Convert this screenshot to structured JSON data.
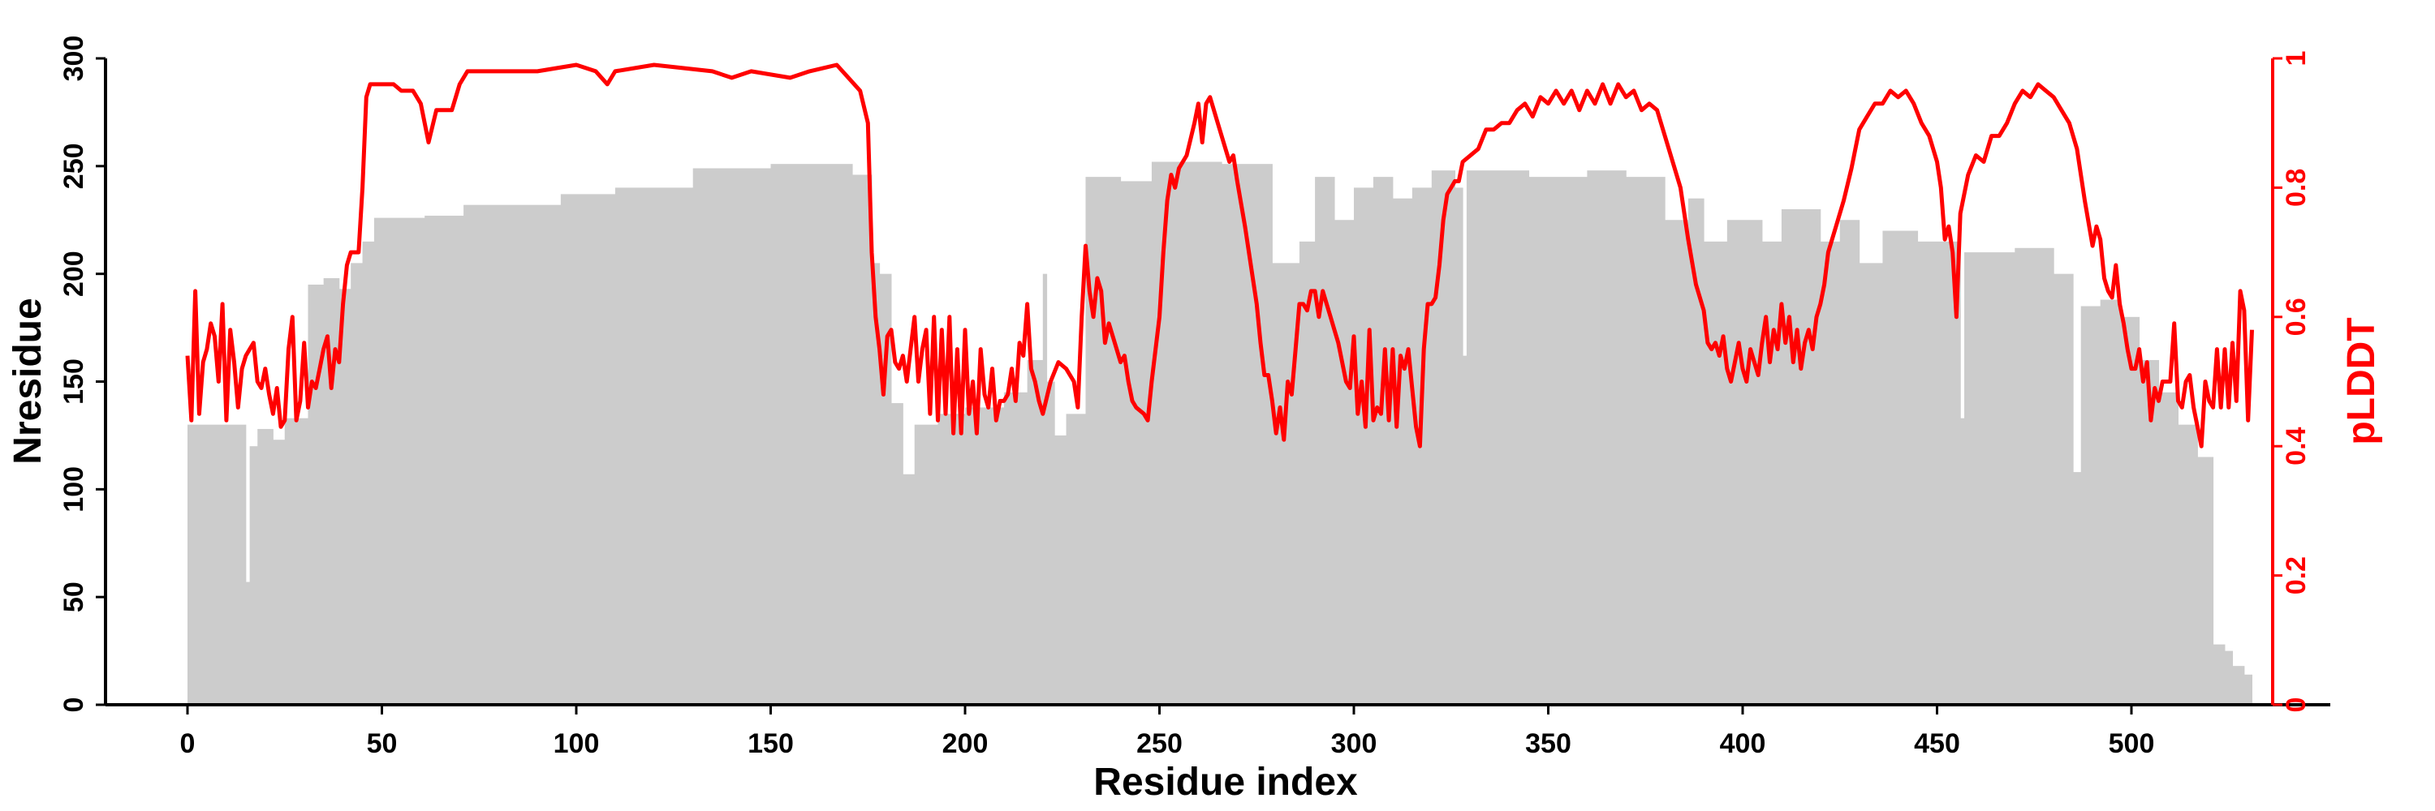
{
  "chart_data": {
    "type": "bar+line",
    "title": "",
    "xlabel": "Residue index",
    "ylabel": "Nresidue",
    "y2label": "pLDDT",
    "xlim": [
      -20,
      550
    ],
    "ylim": [
      0,
      300
    ],
    "y2lim": [
      0,
      1
    ],
    "xticks": [
      0,
      50,
      100,
      150,
      200,
      250,
      300,
      350,
      400,
      450,
      500
    ],
    "yticks": [
      0,
      50,
      100,
      150,
      200,
      250,
      300
    ],
    "y2ticks": [
      0,
      0.2,
      0.4,
      0.6,
      0.8,
      1
    ],
    "grid": false,
    "colors": {
      "bars": "#cccccc",
      "line": "#ff0000",
      "axis": "#000000",
      "axis2": "#ff0000"
    },
    "nresidue_steps": [
      [
        0,
        130
      ],
      [
        15,
        57
      ],
      [
        16,
        120
      ],
      [
        18,
        128
      ],
      [
        22,
        123
      ],
      [
        25,
        133
      ],
      [
        31,
        195
      ],
      [
        35,
        198
      ],
      [
        39,
        193
      ],
      [
        42,
        205
      ],
      [
        45,
        215
      ],
      [
        48,
        226
      ],
      [
        61,
        227
      ],
      [
        71,
        232
      ],
      [
        96,
        237
      ],
      [
        110,
        240
      ],
      [
        130,
        249
      ],
      [
        150,
        251
      ],
      [
        171,
        246
      ],
      [
        176,
        205
      ],
      [
        178,
        200
      ],
      [
        181,
        140
      ],
      [
        184,
        107
      ],
      [
        187,
        130
      ],
      [
        193,
        135
      ],
      [
        200,
        138
      ],
      [
        210,
        145
      ],
      [
        216,
        160
      ],
      [
        220,
        200
      ],
      [
        221,
        150
      ],
      [
        223,
        125
      ],
      [
        226,
        135
      ],
      [
        231,
        245
      ],
      [
        240,
        243
      ],
      [
        248,
        252
      ],
      [
        266,
        251
      ],
      [
        279,
        205
      ],
      [
        286,
        215
      ],
      [
        290,
        245
      ],
      [
        295,
        225
      ],
      [
        300,
        240
      ],
      [
        305,
        245
      ],
      [
        310,
        235
      ],
      [
        315,
        240
      ],
      [
        320,
        248
      ],
      [
        326,
        240
      ],
      [
        328,
        162
      ],
      [
        329,
        248
      ],
      [
        345,
        245
      ],
      [
        360,
        248
      ],
      [
        370,
        245
      ],
      [
        380,
        225
      ],
      [
        386,
        235
      ],
      [
        390,
        215
      ],
      [
        396,
        225
      ],
      [
        405,
        215
      ],
      [
        410,
        230
      ],
      [
        420,
        215
      ],
      [
        425,
        225
      ],
      [
        430,
        205
      ],
      [
        436,
        220
      ],
      [
        445,
        215
      ],
      [
        456,
        133
      ],
      [
        457,
        210
      ],
      [
        470,
        212
      ],
      [
        480,
        200
      ],
      [
        485,
        108
      ],
      [
        487,
        185
      ],
      [
        492,
        188
      ],
      [
        497,
        180
      ],
      [
        502,
        160
      ],
      [
        507,
        145
      ],
      [
        512,
        130
      ],
      [
        517,
        115
      ],
      [
        521,
        28
      ],
      [
        524,
        25
      ],
      [
        526,
        18
      ],
      [
        529,
        14
      ],
      [
        531,
        0
      ]
    ],
    "plddt_points": [
      [
        0,
        0.54
      ],
      [
        1,
        0.44
      ],
      [
        2,
        0.64
      ],
      [
        3,
        0.45
      ],
      [
        4,
        0.53
      ],
      [
        5,
        0.55
      ],
      [
        6,
        0.59
      ],
      [
        7,
        0.57
      ],
      [
        8,
        0.5
      ],
      [
        9,
        0.62
      ],
      [
        10,
        0.44
      ],
      [
        11,
        0.58
      ],
      [
        12,
        0.53
      ],
      [
        13,
        0.46
      ],
      [
        14,
        0.52
      ],
      [
        15,
        0.54
      ],
      [
        16,
        0.55
      ],
      [
        17,
        0.56
      ],
      [
        18,
        0.5
      ],
      [
        19,
        0.49
      ],
      [
        20,
        0.52
      ],
      [
        21,
        0.48
      ],
      [
        22,
        0.45
      ],
      [
        23,
        0.49
      ],
      [
        24,
        0.43
      ],
      [
        25,
        0.44
      ],
      [
        26,
        0.55
      ],
      [
        27,
        0.6
      ],
      [
        28,
        0.44
      ],
      [
        29,
        0.47
      ],
      [
        30,
        0.56
      ],
      [
        31,
        0.46
      ],
      [
        32,
        0.5
      ],
      [
        33,
        0.49
      ],
      [
        34,
        0.52
      ],
      [
        35,
        0.55
      ],
      [
        36,
        0.57
      ],
      [
        37,
        0.49
      ],
      [
        38,
        0.55
      ],
      [
        39,
        0.53
      ],
      [
        40,
        0.62
      ],
      [
        41,
        0.68
      ],
      [
        42,
        0.7
      ],
      [
        43,
        0.7
      ],
      [
        44,
        0.7
      ],
      [
        45,
        0.8
      ],
      [
        46,
        0.94
      ],
      [
        47,
        0.96
      ],
      [
        50,
        0.96
      ],
      [
        53,
        0.96
      ],
      [
        55,
        0.95
      ],
      [
        58,
        0.95
      ],
      [
        60,
        0.93
      ],
      [
        62,
        0.87
      ],
      [
        64,
        0.92
      ],
      [
        66,
        0.92
      ],
      [
        68,
        0.92
      ],
      [
        70,
        0.96
      ],
      [
        72,
        0.98
      ],
      [
        80,
        0.98
      ],
      [
        90,
        0.98
      ],
      [
        100,
        0.99
      ],
      [
        105,
        0.98
      ],
      [
        108,
        0.96
      ],
      [
        110,
        0.98
      ],
      [
        120,
        0.99
      ],
      [
        135,
        0.98
      ],
      [
        140,
        0.97
      ],
      [
        145,
        0.98
      ],
      [
        155,
        0.97
      ],
      [
        160,
        0.98
      ],
      [
        167,
        0.99
      ],
      [
        170,
        0.97
      ],
      [
        173,
        0.95
      ],
      [
        175,
        0.9
      ],
      [
        176,
        0.7
      ],
      [
        177,
        0.6
      ],
      [
        178,
        0.55
      ],
      [
        179,
        0.48
      ],
      [
        180,
        0.57
      ],
      [
        181,
        0.58
      ],
      [
        182,
        0.53
      ],
      [
        183,
        0.52
      ],
      [
        184,
        0.54
      ],
      [
        185,
        0.5
      ],
      [
        186,
        0.55
      ],
      [
        187,
        0.6
      ],
      [
        188,
        0.5
      ],
      [
        189,
        0.55
      ],
      [
        190,
        0.58
      ],
      [
        191,
        0.45
      ],
      [
        192,
        0.6
      ],
      [
        193,
        0.44
      ],
      [
        194,
        0.58
      ],
      [
        195,
        0.45
      ],
      [
        196,
        0.6
      ],
      [
        197,
        0.42
      ],
      [
        198,
        0.55
      ],
      [
        199,
        0.42
      ],
      [
        200,
        0.58
      ],
      [
        201,
        0.45
      ],
      [
        202,
        0.5
      ],
      [
        203,
        0.42
      ],
      [
        204,
        0.55
      ],
      [
        205,
        0.48
      ],
      [
        206,
        0.46
      ],
      [
        207,
        0.52
      ],
      [
        208,
        0.44
      ],
      [
        209,
        0.47
      ],
      [
        210,
        0.47
      ],
      [
        211,
        0.48
      ],
      [
        212,
        0.52
      ],
      [
        213,
        0.47
      ],
      [
        214,
        0.56
      ],
      [
        215,
        0.54
      ],
      [
        216,
        0.62
      ],
      [
        217,
        0.52
      ],
      [
        218,
        0.5
      ],
      [
        219,
        0.47
      ],
      [
        220,
        0.45
      ],
      [
        222,
        0.5
      ],
      [
        224,
        0.53
      ],
      [
        226,
        0.52
      ],
      [
        228,
        0.5
      ],
      [
        229,
        0.46
      ],
      [
        230,
        0.6
      ],
      [
        231,
        0.71
      ],
      [
        232,
        0.64
      ],
      [
        233,
        0.6
      ],
      [
        234,
        0.66
      ],
      [
        235,
        0.64
      ],
      [
        236,
        0.56
      ],
      [
        237,
        0.59
      ],
      [
        238,
        0.57
      ],
      [
        239,
        0.55
      ],
      [
        240,
        0.53
      ],
      [
        241,
        0.54
      ],
      [
        242,
        0.5
      ],
      [
        243,
        0.47
      ],
      [
        244,
        0.46
      ],
      [
        246,
        0.45
      ],
      [
        247,
        0.44
      ],
      [
        248,
        0.5
      ],
      [
        250,
        0.6
      ],
      [
        251,
        0.7
      ],
      [
        252,
        0.78
      ],
      [
        253,
        0.82
      ],
      [
        254,
        0.8
      ],
      [
        255,
        0.83
      ],
      [
        257,
        0.85
      ],
      [
        259,
        0.9
      ],
      [
        260,
        0.93
      ],
      [
        261,
        0.87
      ],
      [
        262,
        0.93
      ],
      [
        263,
        0.94
      ],
      [
        265,
        0.9
      ],
      [
        267,
        0.86
      ],
      [
        268,
        0.84
      ],
      [
        269,
        0.85
      ],
      [
        270,
        0.81
      ],
      [
        272,
        0.74
      ],
      [
        274,
        0.66
      ],
      [
        275,
        0.62
      ],
      [
        276,
        0.56
      ],
      [
        277,
        0.51
      ],
      [
        278,
        0.51
      ],
      [
        279,
        0.47
      ],
      [
        280,
        0.42
      ],
      [
        281,
        0.46
      ],
      [
        282,
        0.41
      ],
      [
        283,
        0.5
      ],
      [
        284,
        0.48
      ],
      [
        285,
        0.55
      ],
      [
        286,
        0.62
      ],
      [
        287,
        0.62
      ],
      [
        288,
        0.61
      ],
      [
        289,
        0.64
      ],
      [
        290,
        0.64
      ],
      [
        291,
        0.6
      ],
      [
        292,
        0.64
      ],
      [
        293,
        0.62
      ],
      [
        294,
        0.6
      ],
      [
        295,
        0.58
      ],
      [
        296,
        0.56
      ],
      [
        297,
        0.53
      ],
      [
        298,
        0.5
      ],
      [
        299,
        0.49
      ],
      [
        300,
        0.57
      ],
      [
        301,
        0.45
      ],
      [
        302,
        0.5
      ],
      [
        303,
        0.43
      ],
      [
        304,
        0.58
      ],
      [
        305,
        0.44
      ],
      [
        306,
        0.46
      ],
      [
        307,
        0.45
      ],
      [
        308,
        0.55
      ],
      [
        309,
        0.44
      ],
      [
        310,
        0.55
      ],
      [
        311,
        0.43
      ],
      [
        312,
        0.54
      ],
      [
        313,
        0.52
      ],
      [
        314,
        0.55
      ],
      [
        315,
        0.49
      ],
      [
        316,
        0.43
      ],
      [
        317,
        0.4
      ],
      [
        318,
        0.55
      ],
      [
        319,
        0.62
      ],
      [
        320,
        0.62
      ],
      [
        321,
        0.63
      ],
      [
        322,
        0.68
      ],
      [
        323,
        0.75
      ],
      [
        324,
        0.79
      ],
      [
        325,
        0.8
      ],
      [
        326,
        0.81
      ],
      [
        327,
        0.81
      ],
      [
        328,
        0.84
      ],
      [
        330,
        0.85
      ],
      [
        332,
        0.86
      ],
      [
        334,
        0.89
      ],
      [
        336,
        0.89
      ],
      [
        338,
        0.9
      ],
      [
        340,
        0.9
      ],
      [
        342,
        0.92
      ],
      [
        344,
        0.93
      ],
      [
        346,
        0.91
      ],
      [
        348,
        0.94
      ],
      [
        350,
        0.93
      ],
      [
        352,
        0.95
      ],
      [
        354,
        0.93
      ],
      [
        356,
        0.95
      ],
      [
        358,
        0.92
      ],
      [
        360,
        0.95
      ],
      [
        362,
        0.93
      ],
      [
        364,
        0.96
      ],
      [
        366,
        0.93
      ],
      [
        368,
        0.96
      ],
      [
        370,
        0.94
      ],
      [
        372,
        0.95
      ],
      [
        374,
        0.92
      ],
      [
        376,
        0.93
      ],
      [
        378,
        0.92
      ],
      [
        380,
        0.88
      ],
      [
        382,
        0.84
      ],
      [
        384,
        0.8
      ],
      [
        386,
        0.72
      ],
      [
        388,
        0.65
      ],
      [
        390,
        0.61
      ],
      [
        391,
        0.56
      ],
      [
        392,
        0.55
      ],
      [
        393,
        0.56
      ],
      [
        394,
        0.54
      ],
      [
        395,
        0.57
      ],
      [
        396,
        0.52
      ],
      [
        397,
        0.5
      ],
      [
        398,
        0.53
      ],
      [
        399,
        0.56
      ],
      [
        400,
        0.52
      ],
      [
        401,
        0.5
      ],
      [
        402,
        0.55
      ],
      [
        403,
        0.53
      ],
      [
        404,
        0.51
      ],
      [
        405,
        0.56
      ],
      [
        406,
        0.6
      ],
      [
        407,
        0.53
      ],
      [
        408,
        0.58
      ],
      [
        409,
        0.55
      ],
      [
        410,
        0.62
      ],
      [
        411,
        0.56
      ],
      [
        412,
        0.6
      ],
      [
        413,
        0.53
      ],
      [
        414,
        0.58
      ],
      [
        415,
        0.52
      ],
      [
        416,
        0.56
      ],
      [
        417,
        0.58
      ],
      [
        418,
        0.55
      ],
      [
        419,
        0.6
      ],
      [
        420,
        0.62
      ],
      [
        421,
        0.65
      ],
      [
        422,
        0.7
      ],
      [
        424,
        0.74
      ],
      [
        426,
        0.78
      ],
      [
        428,
        0.83
      ],
      [
        430,
        0.89
      ],
      [
        432,
        0.91
      ],
      [
        434,
        0.93
      ],
      [
        436,
        0.93
      ],
      [
        438,
        0.95
      ],
      [
        440,
        0.94
      ],
      [
        442,
        0.95
      ],
      [
        444,
        0.93
      ],
      [
        446,
        0.9
      ],
      [
        448,
        0.88
      ],
      [
        450,
        0.84
      ],
      [
        451,
        0.8
      ],
      [
        452,
        0.72
      ],
      [
        453,
        0.74
      ],
      [
        454,
        0.7
      ],
      [
        455,
        0.6
      ],
      [
        456,
        0.76
      ],
      [
        458,
        0.82
      ],
      [
        460,
        0.85
      ],
      [
        462,
        0.84
      ],
      [
        464,
        0.88
      ],
      [
        466,
        0.88
      ],
      [
        468,
        0.9
      ],
      [
        470,
        0.93
      ],
      [
        472,
        0.95
      ],
      [
        474,
        0.94
      ],
      [
        476,
        0.96
      ],
      [
        478,
        0.95
      ],
      [
        480,
        0.94
      ],
      [
        482,
        0.92
      ],
      [
        484,
        0.9
      ],
      [
        486,
        0.86
      ],
      [
        488,
        0.78
      ],
      [
        490,
        0.71
      ],
      [
        491,
        0.74
      ],
      [
        492,
        0.72
      ],
      [
        493,
        0.66
      ],
      [
        494,
        0.64
      ],
      [
        495,
        0.63
      ],
      [
        496,
        0.68
      ],
      [
        497,
        0.62
      ],
      [
        498,
        0.59
      ],
      [
        499,
        0.55
      ],
      [
        500,
        0.52
      ],
      [
        501,
        0.52
      ],
      [
        502,
        0.55
      ],
      [
        503,
        0.5
      ],
      [
        504,
        0.53
      ],
      [
        505,
        0.44
      ],
      [
        506,
        0.49
      ],
      [
        507,
        0.47
      ],
      [
        508,
        0.5
      ],
      [
        509,
        0.5
      ],
      [
        510,
        0.5
      ],
      [
        511,
        0.59
      ],
      [
        512,
        0.47
      ],
      [
        513,
        0.46
      ],
      [
        514,
        0.5
      ],
      [
        515,
        0.51
      ],
      [
        516,
        0.46
      ],
      [
        517,
        0.43
      ],
      [
        518,
        0.4
      ],
      [
        519,
        0.5
      ],
      [
        520,
        0.47
      ],
      [
        521,
        0.46
      ],
      [
        522,
        0.55
      ],
      [
        523,
        0.46
      ],
      [
        524,
        0.55
      ],
      [
        525,
        0.46
      ],
      [
        526,
        0.56
      ],
      [
        527,
        0.47
      ],
      [
        528,
        0.64
      ],
      [
        529,
        0.61
      ],
      [
        530,
        0.44
      ],
      [
        531,
        0.58
      ]
    ]
  }
}
